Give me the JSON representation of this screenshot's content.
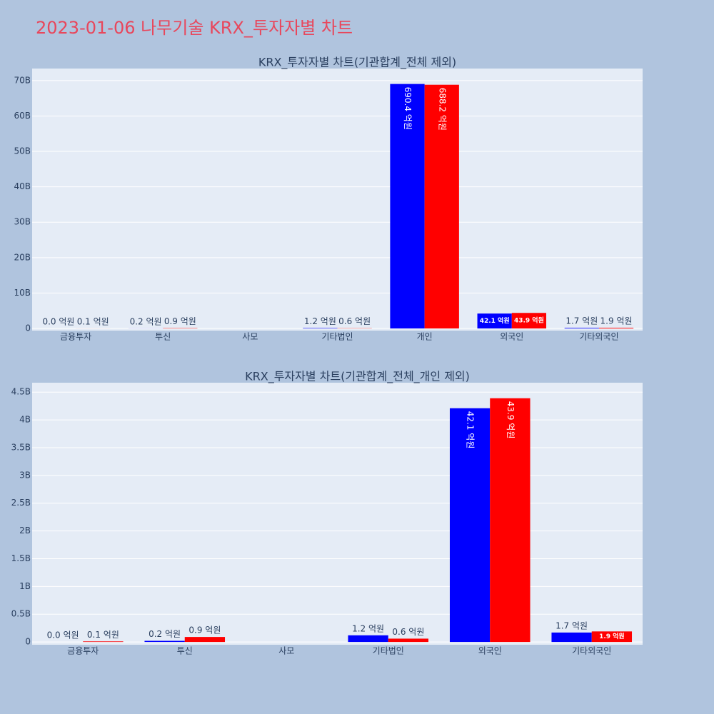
{
  "title": "2023-01-06 나무기술 KRX_투자자별 차트",
  "chart_data": [
    {
      "type": "bar",
      "title": "KRX_투자자별 차트(기관합계_전체 제외)",
      "categories": [
        "금융투자",
        "투신",
        "사모",
        "기타법인",
        "개인",
        "외국인",
        "기타외국인"
      ],
      "series": [
        {
          "color": "#0000ff",
          "values": [
            0,
            20000000,
            null,
            120000000,
            69040000000,
            4210000000,
            170000000
          ],
          "value_labels": [
            "0.0 억원",
            "0.2 억원",
            null,
            "1.2 억원",
            "690.4 억원",
            "42.1 억원",
            "1.7 억원"
          ]
        },
        {
          "color": "#ff0000",
          "values": [
            10000000,
            90000000,
            null,
            60000000,
            68820000000,
            4390000000,
            190000000
          ],
          "value_labels": [
            "0.1 억원",
            "0.9 억원",
            null,
            "0.6 억원",
            "688.2 억원",
            "43.9 억원",
            "1.9 억원"
          ]
        }
      ],
      "ylim": [
        -600000000,
        73400000000
      ],
      "yticks": [
        0,
        {
          "value": 10000000000,
          "label": "10B"
        },
        {
          "value": 20000000000,
          "label": "20B"
        },
        {
          "value": 30000000000,
          "label": "30B"
        },
        {
          "value": 40000000000,
          "label": "40B"
        },
        {
          "value": 50000000000,
          "label": "50B"
        },
        {
          "value": 60000000000,
          "label": "60B"
        },
        {
          "value": 70000000000,
          "label": "70B"
        }
      ],
      "grid": true
    },
    {
      "type": "bar",
      "title": "KRX_투자자별 차트(기관합계_전체_개인 제외)",
      "categories": [
        "금융투자",
        "투신",
        "사모",
        "기타법인",
        "외국인",
        "기타외국인"
      ],
      "series": [
        {
          "color": "#0000ff",
          "values": [
            0,
            20000000,
            null,
            120000000,
            4210000000,
            170000000
          ],
          "value_labels": [
            "0.0 억원",
            "0.2 억원",
            null,
            "1.2 억원",
            "42.1 억원",
            "1.7 억원"
          ]
        },
        {
          "color": "#ff0000",
          "values": [
            10000000,
            90000000,
            null,
            60000000,
            4390000000,
            190000000
          ],
          "value_labels": [
            "0.1 억원",
            "0.9 억원",
            null,
            "0.6 억원",
            "43.9 억원",
            "1.9 억원"
          ]
        }
      ],
      "ylim": [
        -50000000,
        4670000000
      ],
      "yticks": [
        0,
        {
          "value": 500000000,
          "label": "0.5B"
        },
        {
          "value": 1000000000,
          "label": "1B"
        },
        {
          "value": 1500000000,
          "label": "1.5B"
        },
        {
          "value": 2000000000,
          "label": "2B"
        },
        {
          "value": 2500000000,
          "label": "2.5B"
        },
        {
          "value": 3000000000,
          "label": "3B"
        },
        {
          "value": 3500000000,
          "label": "3.5B"
        },
        {
          "value": 4000000000,
          "label": "4B"
        },
        {
          "value": 4500000000,
          "label": "4.5B"
        }
      ],
      "grid": true
    }
  ]
}
